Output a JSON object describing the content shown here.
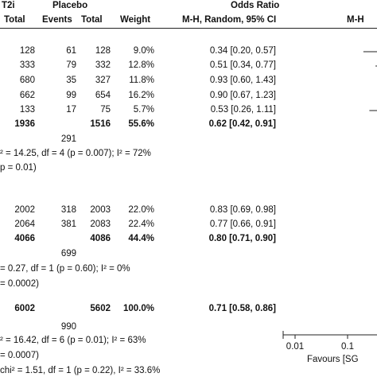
{
  "chart_data": {
    "type": "table",
    "title": "",
    "header": {
      "group_sglt2i": "T2i",
      "group_placebo": "Placebo",
      "group_or": "Odds Ratio",
      "group_or_right": "M-H",
      "col_total_sglt2i": "Total",
      "col_events_placebo": "Events",
      "col_total_placebo": "Total",
      "col_weight": "Weight",
      "col_ci": "M-H, Random, 95% CI"
    },
    "subgroups": [
      {
        "rows": [
          {
            "sglt2i_total": "128",
            "placebo_events": "61",
            "placebo_total": "128",
            "weight": "9.0%",
            "ci_text": "0.34 [0.20, 0.57]",
            "or": 0.34,
            "lo": 0.2,
            "hi": 0.57
          },
          {
            "sglt2i_total": "333",
            "placebo_events": "79",
            "placebo_total": "332",
            "weight": "12.8%",
            "ci_text": "0.51 [0.34, 0.77]",
            "or": 0.51,
            "lo": 0.34,
            "hi": 0.77
          },
          {
            "sglt2i_total": "680",
            "placebo_events": "35",
            "placebo_total": "327",
            "weight": "11.8%",
            "ci_text": "0.93 [0.60, 1.43]",
            "or": 0.93,
            "lo": 0.6,
            "hi": 1.43
          },
          {
            "sglt2i_total": "662",
            "placebo_events": "99",
            "placebo_total": "654",
            "weight": "16.2%",
            "ci_text": "0.90 [0.67, 1.23]",
            "or": 0.9,
            "lo": 0.67,
            "hi": 1.23
          },
          {
            "sglt2i_total": "133",
            "placebo_events": "17",
            "placebo_total": "75",
            "weight": "5.7%",
            "ci_text": "0.53 [0.26, 1.11]",
            "or": 0.53,
            "lo": 0.26,
            "hi": 1.11
          }
        ],
        "subtotal": {
          "sglt2i_total": "1936",
          "placebo_total": "1516",
          "weight": "55.6%",
          "ci_text": "0.62 [0.42, 0.91]",
          "or": 0.62,
          "lo": 0.42,
          "hi": 0.91
        },
        "total_events": "291",
        "heterogeneity": "² = 14.25, df = 4 (p = 0.007); I² = 72%",
        "overall_effect": "p = 0.01)"
      },
      {
        "rows": [
          {
            "sglt2i_total": "2002",
            "placebo_events": "318",
            "placebo_total": "2003",
            "weight": "22.0%",
            "ci_text": "0.83 [0.69, 0.98]",
            "or": 0.83,
            "lo": 0.69,
            "hi": 0.98
          },
          {
            "sglt2i_total": "2064",
            "placebo_events": "381",
            "placebo_total": "2083",
            "weight": "22.4%",
            "ci_text": "0.77 [0.66, 0.91]",
            "or": 0.77,
            "lo": 0.66,
            "hi": 0.91
          }
        ],
        "subtotal": {
          "sglt2i_total": "4066",
          "placebo_total": "4086",
          "weight": "44.4%",
          "ci_text": "0.80 [0.71, 0.90]",
          "or": 0.8,
          "lo": 0.71,
          "hi": 0.9
        },
        "total_events": "699",
        "heterogeneity": "= 0.27, df = 1 (p = 0.60); I² = 0%",
        "overall_effect": "= 0.0002)"
      }
    ],
    "overall": {
      "sglt2i_total": "6002",
      "placebo_total": "5602",
      "weight": "100.0%",
      "ci_text": "0.71 [0.58, 0.86]",
      "or": 0.71,
      "lo": 0.58,
      "hi": 0.86,
      "total_events": "990",
      "heterogeneity": "² = 16.42, df = 6 (p = 0.01); I² = 63%",
      "overall_effect": "= 0.0007)",
      "subgroup_differences": "chi² = 1.51, df = 1 (p = 0.22), I² = 33.6%"
    },
    "axis": {
      "scale": "log",
      "ticks": [
        0.01,
        0.1
      ],
      "tick_labels": [
        "0.01",
        "0.1"
      ],
      "favours_left": "Favours [SG"
    }
  }
}
